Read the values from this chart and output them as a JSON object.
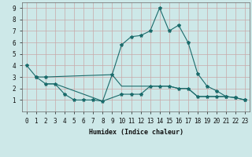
{
  "xlabel": "Humidex (Indice chaleur)",
  "bg_color": "#cde8e8",
  "grid_color_h": "#d4a0a0",
  "grid_color_v": "#c8b8b8",
  "line_color": "#1a6b6b",
  "xlim": [
    -0.5,
    23.5
  ],
  "ylim": [
    0,
    9.5
  ],
  "xticks": [
    0,
    1,
    2,
    3,
    4,
    5,
    6,
    7,
    8,
    9,
    10,
    11,
    12,
    13,
    14,
    15,
    16,
    17,
    18,
    19,
    20,
    21,
    22,
    23
  ],
  "yticks": [
    1,
    2,
    3,
    4,
    5,
    6,
    7,
    8,
    9
  ],
  "line1_x": [
    0,
    1,
    2,
    9,
    10,
    11,
    12,
    13,
    14,
    15,
    16,
    17,
    18,
    19,
    20,
    21,
    22,
    23
  ],
  "line1_y": [
    4.0,
    3.0,
    3.0,
    3.2,
    5.8,
    6.5,
    6.6,
    7.0,
    9.0,
    7.0,
    7.5,
    6.0,
    3.3,
    2.2,
    1.8,
    1.3,
    1.2,
    1.0
  ],
  "line2_x": [
    1,
    2,
    3,
    4,
    5,
    6,
    7,
    8,
    10,
    11,
    12,
    13,
    14,
    15,
    16,
    17,
    18,
    19,
    20,
    21,
    22,
    23
  ],
  "line2_y": [
    3.0,
    2.4,
    2.4,
    1.5,
    1.0,
    1.0,
    1.0,
    0.9,
    1.5,
    1.5,
    1.5,
    2.2,
    2.2,
    2.2,
    2.0,
    2.0,
    1.3,
    1.3,
    1.3,
    1.3,
    1.2,
    1.0
  ],
  "line3_x": [
    2,
    3,
    8,
    9,
    10,
    11,
    12,
    13,
    14,
    15,
    16,
    17,
    18,
    19,
    20,
    21
  ],
  "line3_y": [
    2.4,
    2.4,
    0.9,
    3.2,
    2.2,
    2.2,
    2.2,
    2.2,
    2.2,
    2.2,
    2.0,
    2.0,
    1.3,
    1.3,
    1.3,
    1.3
  ],
  "xlabel_fontsize": 6,
  "tick_fontsize": 5.5
}
